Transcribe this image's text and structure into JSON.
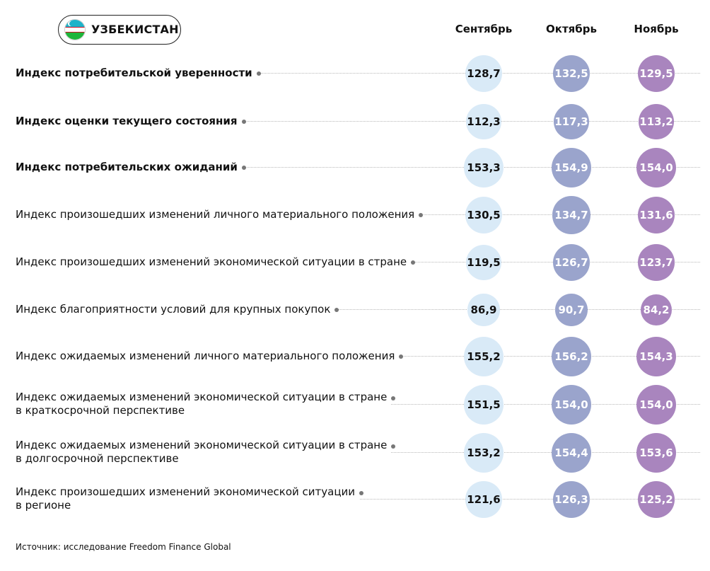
{
  "country": "УЗБЕКИСТАН",
  "colors": {
    "september": "#d9eaf7",
    "october": "#9aa4cc",
    "november": "#a985be",
    "september_text": "#111111",
    "october_text": "#ffffff",
    "november_text": "#ffffff"
  },
  "chart_data": {
    "type": "table",
    "columns": [
      "Сентябрь",
      "Октябрь",
      "Ноябрь"
    ],
    "rows": [
      {
        "label": "Индекс потребительской уверенности",
        "bold": true,
        "values": [
          "128,7",
          "132,5",
          "129,5"
        ]
      },
      {
        "label": "Индекс оценки текущего состояния",
        "bold": true,
        "values": [
          "112,3",
          "117,3",
          "113,2"
        ]
      },
      {
        "label": "Индекс потребительских ожиданий",
        "bold": true,
        "values": [
          "153,3",
          "154,9",
          "154,0"
        ]
      },
      {
        "label": "Индекс произошедших изменений личного материального положения",
        "bold": false,
        "values": [
          "130,5",
          "134,7",
          "131,6"
        ]
      },
      {
        "label": "Индекс произошедших изменений экономической ситуации в стране",
        "bold": false,
        "values": [
          "119,5",
          "126,7",
          "123,7"
        ]
      },
      {
        "label": "Индекс благоприятности условий для крупных покупок",
        "bold": false,
        "values": [
          "86,9",
          "90,7",
          "84,2"
        ]
      },
      {
        "label": "Индекс ожидаемых изменений личного материального положения",
        "bold": false,
        "values": [
          "155,2",
          "156,2",
          "154,3"
        ]
      },
      {
        "label": "Индекс ожидаемых изменений экономической ситуации в стране\nв краткосрочной перспективе",
        "bold": false,
        "values": [
          "151,5",
          "154,0",
          "154,0"
        ]
      },
      {
        "label": "Индекс ожидаемых изменений экономической ситуации в стране\nв долгосрочной перспективе",
        "bold": false,
        "values": [
          "153,2",
          "154,4",
          "153,6"
        ]
      },
      {
        "label": "Индекс произошедших изменений экономической ситуации\nв регионе",
        "bold": false,
        "values": [
          "121,6",
          "126,3",
          "125,2"
        ]
      }
    ]
  },
  "source": "Источник: исследование Freedom Finance Global"
}
